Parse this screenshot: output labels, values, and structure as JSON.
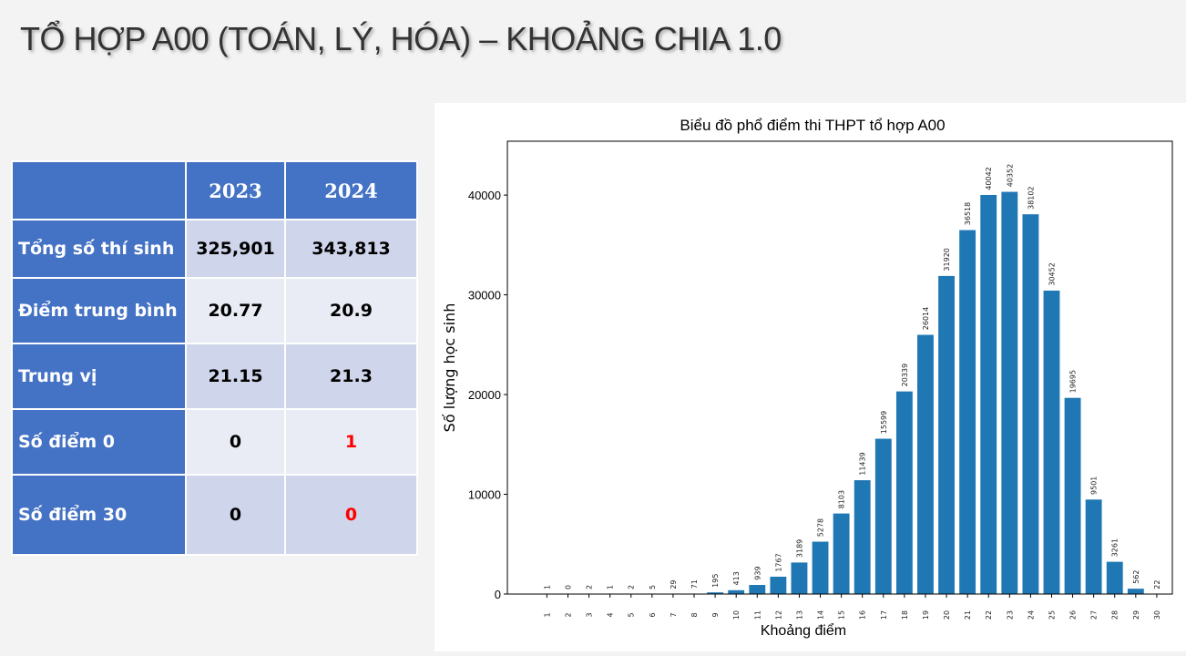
{
  "title": "TỔ HỢP A00 (TOÁN, LÝ, HÓA) – KHOẢNG CHIA 1.0",
  "table": {
    "headers": [
      "",
      "2023",
      "2024"
    ],
    "rows": [
      {
        "label": "Tổng số thí sinh",
        "v2023": "325,901",
        "v2024": "343,813"
      },
      {
        "label": "Điểm trung bình",
        "v2023": "20.77",
        "v2024": "20.9"
      },
      {
        "label": "Trung vị",
        "v2023": "21.15",
        "v2024": "21.3"
      },
      {
        "label": "Số điểm 0",
        "v2023": "0",
        "v2024": "1"
      },
      {
        "label": "Số điểm 30",
        "v2023": "0",
        "v2024": "0"
      }
    ],
    "highlight_color": "#ff0000"
  },
  "chart_data": {
    "type": "bar",
    "title": "Biểu đồ phổ điểm thi THPT tổ hợp A00",
    "xlabel": "Khoảng điểm",
    "ylabel": "Số lượng học sinh",
    "categories": [
      "1",
      "2",
      "3",
      "4",
      "5",
      "6",
      "7",
      "8",
      "9",
      "10",
      "11",
      "12",
      "13",
      "14",
      "15",
      "16",
      "17",
      "18",
      "19",
      "20",
      "21",
      "22",
      "23",
      "24",
      "25",
      "26",
      "27",
      "28",
      "29",
      "30"
    ],
    "values": [
      1,
      0,
      2,
      1,
      2,
      5,
      29,
      71,
      195,
      413,
      939,
      1767,
      3189,
      5278,
      8103,
      11439,
      15599,
      20339,
      26014,
      31920,
      36518,
      40042,
      40352,
      38102,
      30452,
      19695,
      9501,
      3261,
      562,
      22
    ],
    "yticks": [
      0,
      10000,
      20000,
      30000,
      40000
    ],
    "ylim": [
      0,
      45400
    ],
    "bar_color": "#1f77b4"
  }
}
